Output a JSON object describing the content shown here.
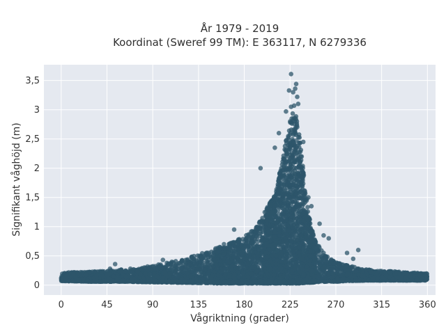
{
  "chart_data": {
    "type": "scatter",
    "title": "År 1979 - 2019",
    "subtitle": "Koordinat (Sweref 99 TM): E 363117, N 6279336",
    "xlabel": "Vågriktning (grader)",
    "ylabel": "Signifikant våghöjd (m)",
    "xlim": [
      -17,
      368
    ],
    "ylim": [
      -0.17,
      3.77
    ],
    "xticks": [
      0,
      45,
      90,
      135,
      180,
      225,
      270,
      315,
      360
    ],
    "xtick_labels": [
      "0",
      "45",
      "90",
      "135",
      "180",
      "225",
      "270",
      "315",
      "360"
    ],
    "yticks": [
      0,
      0.5,
      1,
      1.5,
      2,
      2.5,
      3,
      3.5
    ],
    "ytick_labels": [
      "0",
      "0,5",
      "1",
      "1,5",
      "2",
      "2,5",
      "3",
      "3,5"
    ],
    "grid": true,
    "legend": "none",
    "marker_color": "#2e556b",
    "envelope": {
      "x": [
        0,
        30,
        60,
        90,
        120,
        150,
        170,
        190,
        200,
        210,
        215,
        220,
        225,
        228,
        232,
        236,
        240,
        245,
        250,
        260,
        270,
        280,
        300,
        330,
        360
      ],
      "upper": [
        0.22,
        0.23,
        0.27,
        0.33,
        0.44,
        0.62,
        0.74,
        0.95,
        1.25,
        1.55,
        1.95,
        2.4,
        2.85,
        2.95,
        2.9,
        2.3,
        1.65,
        1.05,
        0.75,
        0.5,
        0.4,
        0.34,
        0.27,
        0.23,
        0.2
      ],
      "lower": [
        0.07,
        0.06,
        0.06,
        0.05,
        0.04,
        0.03,
        0.03,
        0.03,
        0.03,
        0.03,
        0.03,
        0.03,
        0.03,
        0.03,
        0.03,
        0.03,
        0.04,
        0.04,
        0.05,
        0.06,
        0.06,
        0.07,
        0.08,
        0.08,
        0.08
      ]
    },
    "highlighted_points": {
      "x": [
        226,
        231,
        230,
        224,
        228,
        232,
        233,
        229,
        226,
        221,
        238,
        210,
        214,
        225,
        243,
        246,
        254,
        258,
        263,
        281,
        292,
        287,
        196,
        170,
        160,
        53,
        100,
        48
      ],
      "y": [
        3.61,
        3.44,
        3.36,
        3.33,
        3.3,
        3.22,
        3.1,
        3.07,
        3.05,
        2.97,
        2.45,
        2.35,
        2.6,
        2.8,
        1.5,
        1.35,
        1.05,
        0.85,
        0.8,
        0.55,
        0.6,
        0.45,
        2.0,
        0.95,
        0.7,
        0.36,
        0.43,
        0.28
      ]
    }
  },
  "colors": {
    "plot_background": "#e5e9f0",
    "grid": "#ffffff",
    "marker": "#2e556b"
  }
}
